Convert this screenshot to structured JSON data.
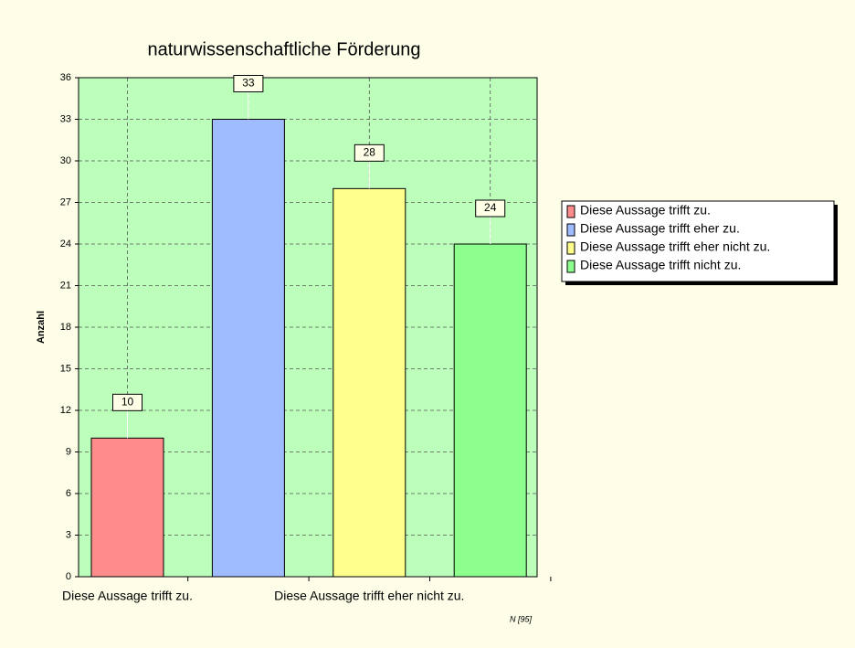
{
  "chart_data": {
    "type": "bar",
    "title": "naturwissenschaftliche Förderung",
    "y_label": "Anzahl",
    "note": "N [95]",
    "categories": [
      "Diese Aussage trifft zu.",
      null,
      "Diese Aussage trifft eher nicht zu.",
      null
    ],
    "values": [
      10,
      33,
      28,
      24
    ],
    "colors": [
      "#ff8c8c",
      "#9ebcff",
      "#ffff8c",
      "#8cff8c"
    ],
    "legend": [
      "Diese Aussage trifft zu.",
      "Diese Aussage trifft eher zu.",
      "Diese Aussage trifft eher nicht zu.",
      "Diese Aussage trifft nicht zu."
    ],
    "ylim": [
      0,
      36
    ],
    "yticks": [
      0,
      3,
      6,
      9,
      12,
      15,
      18,
      21,
      24,
      27,
      30,
      33,
      36
    ],
    "grid": true
  }
}
